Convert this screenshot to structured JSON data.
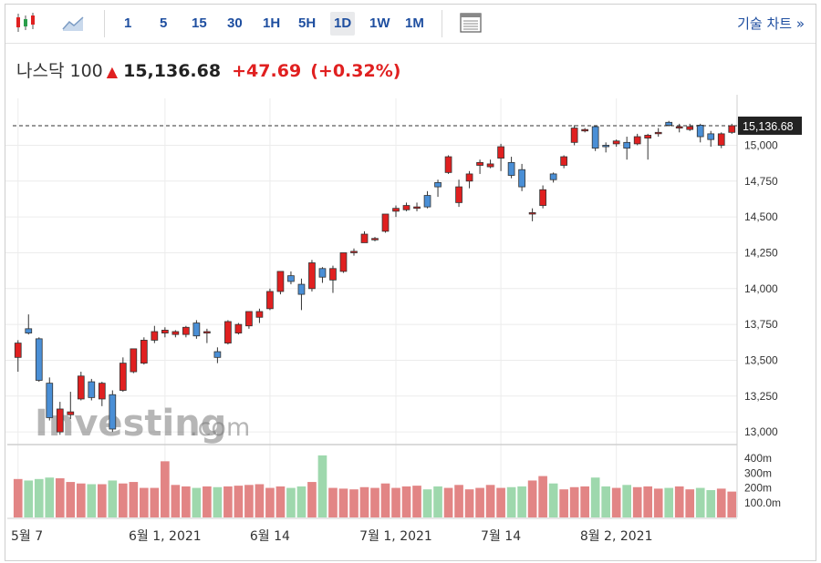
{
  "toolbar": {
    "timeframes": [
      "1",
      "5",
      "15",
      "30",
      "1H",
      "5H",
      "1D",
      "1W",
      "1M"
    ],
    "active_timeframe": "1D",
    "technical_chart_label": "기술 차트 »",
    "icons": [
      "candlestick-icon",
      "area-chart-icon",
      "table-icon"
    ]
  },
  "quote": {
    "name": "나스닥 100",
    "price": "15,136.68",
    "change": "+47.69",
    "change_pct": "(+0.32%)",
    "direction": "up"
  },
  "watermark": {
    "brand": "Investing",
    "suffix": ".com"
  },
  "colors": {
    "up": "#e02020",
    "down": "#4a8fd6",
    "vol_up": "#e28585",
    "vol_down": "#9ed8ad",
    "accent": "#1f4fa0"
  },
  "chart_data": {
    "type": "candlestick",
    "price_axis": {
      "ticks": [
        "13,000",
        "13,250",
        "13,500",
        "13,750",
        "14,000",
        "14,250",
        "14,500",
        "14,750",
        "15,000"
      ],
      "ylim": [
        12950,
        15200
      ]
    },
    "last_price_label": "15,136.68",
    "last_price": 15136.68,
    "volume_axis": {
      "ticks": [
        "400m",
        "300m",
        "200m",
        "100.0m"
      ],
      "ylim": [
        0,
        450
      ]
    },
    "x_labels": [
      "5월 7",
      "6월 1, 2021",
      "6월 14",
      "7월 1, 2021",
      "7월 14",
      "8월 2, 2021"
    ],
    "x_label_index": [
      0,
      14,
      24,
      36,
      46,
      57
    ],
    "candles": [
      [
        13520,
        13640,
        13420,
        13620,
        260
      ],
      [
        13720,
        13820,
        13680,
        13690,
        250
      ],
      [
        13650,
        13660,
        13350,
        13360,
        260
      ],
      [
        13340,
        13380,
        13080,
        13100,
        270
      ],
      [
        13000,
        13210,
        12980,
        13160,
        265
      ],
      [
        13120,
        13280,
        13090,
        13140,
        240
      ],
      [
        13230,
        13420,
        13220,
        13390,
        230
      ],
      [
        13350,
        13370,
        13220,
        13240,
        225
      ],
      [
        13230,
        13350,
        13180,
        13340,
        225
      ],
      [
        13260,
        13290,
        13000,
        13020,
        250
      ],
      [
        13290,
        13520,
        13280,
        13480,
        230
      ],
      [
        13420,
        13580,
        13410,
        13580,
        240
      ],
      [
        13480,
        13660,
        13470,
        13640,
        200
      ],
      [
        13640,
        13740,
        13620,
        13700,
        200
      ],
      [
        13690,
        13730,
        13660,
        13710,
        380
      ],
      [
        13680,
        13710,
        13660,
        13700,
        220
      ],
      [
        13680,
        13740,
        13660,
        13730,
        210
      ],
      [
        13760,
        13780,
        13650,
        13670,
        200
      ],
      [
        13690,
        13720,
        13620,
        13700,
        210
      ],
      [
        13560,
        13590,
        13480,
        13520,
        205
      ],
      [
        13620,
        13780,
        13610,
        13770,
        210
      ],
      [
        13690,
        13760,
        13680,
        13750,
        215
      ],
      [
        13740,
        13840,
        13720,
        13840,
        220
      ],
      [
        13800,
        13860,
        13760,
        13840,
        225
      ],
      [
        13860,
        14000,
        13850,
        13980,
        200
      ],
      [
        13980,
        14120,
        13960,
        14120,
        210
      ],
      [
        14090,
        14120,
        14030,
        14050,
        200
      ],
      [
        14030,
        14070,
        13850,
        13960,
        210
      ],
      [
        14000,
        14200,
        13980,
        14180,
        240
      ],
      [
        14140,
        14150,
        14040,
        14080,
        420
      ],
      [
        14060,
        14160,
        13970,
        14140,
        200
      ],
      [
        14120,
        14250,
        14110,
        14250,
        195
      ],
      [
        14250,
        14280,
        14230,
        14260,
        190
      ],
      [
        14320,
        14400,
        14320,
        14380,
        205
      ],
      [
        14340,
        14360,
        14330,
        14350,
        200
      ],
      [
        14400,
        14510,
        14390,
        14520,
        230
      ],
      [
        14540,
        14580,
        14500,
        14560,
        200
      ],
      [
        14550,
        14600,
        14540,
        14580,
        210
      ],
      [
        14560,
        14600,
        14540,
        14570,
        215
      ],
      [
        14650,
        14680,
        14560,
        14570,
        190
      ],
      [
        14740,
        14760,
        14640,
        14710,
        210
      ],
      [
        14810,
        14930,
        14800,
        14920,
        200
      ],
      [
        14600,
        14760,
        14570,
        14710,
        220
      ],
      [
        14750,
        14820,
        14700,
        14800,
        190
      ],
      [
        14860,
        14900,
        14800,
        14880,
        200
      ],
      [
        14850,
        14900,
        14840,
        14870,
        220
      ],
      [
        14910,
        15010,
        14820,
        14990,
        200
      ],
      [
        14880,
        14920,
        14770,
        14790,
        205
      ],
      [
        14830,
        14870,
        14680,
        14710,
        210
      ],
      [
        14520,
        14560,
        14470,
        14530,
        250
      ],
      [
        14580,
        14720,
        14560,
        14690,
        280
      ],
      [
        14800,
        14810,
        14740,
        14760,
        230
      ],
      [
        14860,
        14930,
        14840,
        14920,
        190
      ],
      [
        15020,
        15140,
        15000,
        15120,
        205
      ],
      [
        15100,
        15120,
        15090,
        15110,
        210
      ],
      [
        15130,
        15140,
        14960,
        14980,
        270
      ],
      [
        15000,
        15020,
        14950,
        14990,
        210
      ],
      [
        15010,
        15040,
        14990,
        15030,
        200
      ],
      [
        15020,
        15060,
        14900,
        14980,
        220
      ],
      [
        15010,
        15080,
        15000,
        15060,
        205
      ],
      [
        15050,
        15080,
        14900,
        15070,
        210
      ],
      [
        15090,
        15120,
        15060,
        15090,
        195
      ],
      [
        15160,
        15170,
        15130,
        15140,
        200
      ],
      [
        15120,
        15150,
        15090,
        15130,
        210
      ],
      [
        15110,
        15150,
        15100,
        15130,
        190
      ],
      [
        15140,
        15150,
        15020,
        15060,
        200
      ],
      [
        15080,
        15100,
        14990,
        15040,
        185
      ],
      [
        15000,
        15090,
        14980,
        15080,
        195
      ],
      [
        15090,
        15150,
        15080,
        15136.68,
        175
      ]
    ]
  }
}
